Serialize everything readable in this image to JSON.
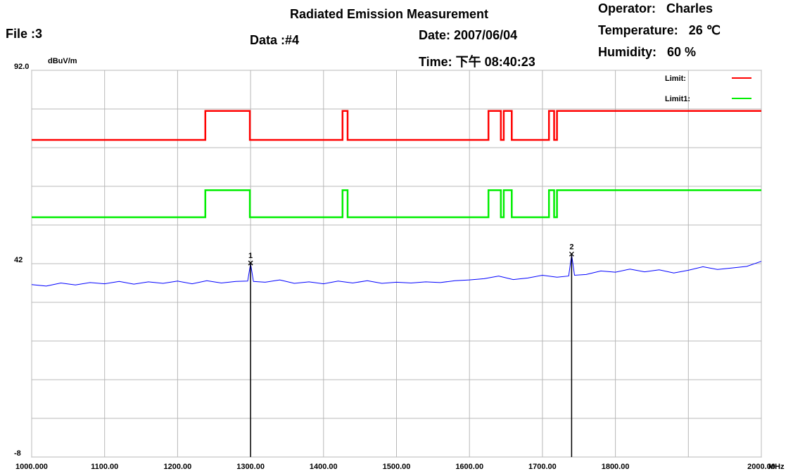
{
  "chart_data": {
    "type": "line",
    "title": "Radiated Emission Measurement",
    "header": {
      "file": "File :3",
      "data": "Data :#4",
      "date": "Date: 2007/06/04",
      "time": "Time: 下午 08:40:23",
      "operator": "Operator:   Charles",
      "temperature": "Temperature:   26 ℃",
      "humidity": "Humidity:   60 %"
    },
    "y_unit": "dBuV/m",
    "x_unit": "MHz",
    "xlim": [
      1000,
      2000
    ],
    "xticks": [
      {
        "value": 1000,
        "label": "1000.000"
      },
      {
        "value": 1100,
        "label": "1100.00"
      },
      {
        "value": 1200,
        "label": "1200.00"
      },
      {
        "value": 1300,
        "label": "1300.00"
      },
      {
        "value": 1400,
        "label": "1400.00"
      },
      {
        "value": 1500,
        "label": "1500.00"
      },
      {
        "value": 1600,
        "label": "1600.00"
      },
      {
        "value": 1700,
        "label": "1700.00"
      },
      {
        "value": 1800,
        "label": "1800.00"
      },
      {
        "value": 1900,
        "label": null
      },
      {
        "value": 2000,
        "label": "2000.00"
      }
    ],
    "ylim": [
      -8,
      92
    ],
    "yticks": [
      {
        "value": 92,
        "label": "92.0"
      },
      {
        "value": 82,
        "label": null
      },
      {
        "value": 72,
        "label": null
      },
      {
        "value": 62,
        "label": null
      },
      {
        "value": 52,
        "label": null
      },
      42,
      {
        "value": 32,
        "label": null
      },
      {
        "value": 22,
        "label": null
      },
      {
        "value": 12,
        "label": null
      },
      {
        "value": 2,
        "label": null
      },
      -8
    ],
    "grid": true,
    "legend": "top-right",
    "series": [
      {
        "name": "Limit:",
        "color": "#ff0000",
        "x": [
          1000,
          1238,
          1238,
          1299,
          1299,
          1426,
          1426,
          1433,
          1433,
          1626,
          1626,
          1643,
          1643,
          1647,
          1647,
          1658,
          1658,
          1709,
          1709,
          1716,
          1716,
          1720,
          1720,
          2000
        ],
        "values": [
          74,
          74,
          81.5,
          81.5,
          74,
          74,
          81.5,
          81.5,
          74,
          74,
          81.5,
          81.5,
          74,
          74,
          81.5,
          81.5,
          74,
          74,
          81.5,
          81.5,
          74,
          74,
          81.5,
          81.5
        ]
      },
      {
        "name": "Limit1:",
        "color": "#00ee00",
        "x": [
          1000,
          1238,
          1238,
          1299,
          1299,
          1426,
          1426,
          1433,
          1433,
          1626,
          1626,
          1643,
          1643,
          1647,
          1647,
          1658,
          1658,
          1709,
          1709,
          1716,
          1716,
          1720,
          1720,
          2000
        ],
        "values": [
          54,
          54,
          61,
          61,
          54,
          54,
          61,
          61,
          54,
          54,
          61,
          61,
          54,
          54,
          61,
          61,
          54,
          54,
          61,
          61,
          54,
          54,
          61,
          61
        ]
      }
    ],
    "trace": {
      "color": "#0000ff",
      "x": [
        1000,
        1020,
        1040,
        1060,
        1080,
        1100,
        1120,
        1140,
        1160,
        1180,
        1200,
        1220,
        1240,
        1260,
        1280,
        1296,
        1300,
        1304,
        1320,
        1340,
        1360,
        1380,
        1400,
        1420,
        1440,
        1460,
        1480,
        1500,
        1520,
        1540,
        1560,
        1580,
        1600,
        1620,
        1640,
        1660,
        1680,
        1700,
        1720,
        1736,
        1740,
        1744,
        1760,
        1780,
        1800,
        1820,
        1840,
        1860,
        1880,
        1900,
        1920,
        1940,
        1960,
        1980,
        2000
      ],
      "values": [
        36.6,
        36.2,
        37.0,
        36.5,
        37.1,
        36.8,
        37.4,
        36.7,
        37.3,
        36.9,
        37.5,
        36.8,
        37.6,
        37.0,
        37.4,
        37.5,
        42.0,
        37.4,
        37.2,
        37.8,
        36.9,
        37.3,
        36.8,
        37.5,
        37.0,
        37.6,
        36.9,
        37.2,
        37.0,
        37.3,
        37.1,
        37.6,
        37.8,
        38.1,
        38.8,
        37.9,
        38.3,
        39.0,
        38.5,
        38.8,
        44.3,
        39.0,
        39.2,
        40.1,
        39.8,
        40.6,
        39.9,
        40.4,
        39.6,
        40.3,
        41.2,
        40.5,
        40.9,
        41.3,
        42.6
      ]
    },
    "markers": {
      "labels": [
        "1",
        "2"
      ],
      "x": [
        1300,
        1740
      ],
      "values": [
        42.0,
        44.3
      ]
    }
  }
}
